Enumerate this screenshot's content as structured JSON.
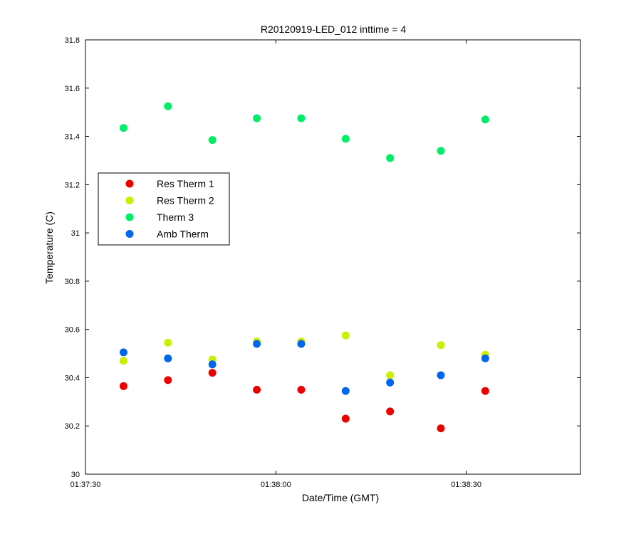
{
  "chart_data": {
    "type": "scatter",
    "title": "R20120919-LED_012 inttime = 4",
    "xlabel": "Date/Time (GMT)",
    "ylabel": "Temperature (C)",
    "x_ticks": [
      "01:37:30",
      "01:38:00",
      "01:38:30"
    ],
    "x_tick_values": [
      "01:37:30",
      "01:38:00",
      "01:38:30"
    ],
    "xlim": [
      "01:37:30",
      "01:38:48"
    ],
    "y_ticks": [
      "30",
      "30.2",
      "30.4",
      "30.6",
      "30.8",
      "31",
      "31.2",
      "31.4",
      "31.6",
      "31.8"
    ],
    "ylim": [
      30,
      31.8
    ],
    "grid": false,
    "legend_position": "left",
    "x": [
      "01:37:36",
      "01:37:43",
      "01:37:50",
      "01:37:57",
      "01:38:04",
      "01:38:11",
      "01:38:18",
      "01:38:26",
      "01:38:33"
    ],
    "series": [
      {
        "name": "Res Therm 1",
        "color": "#ee0000",
        "values": [
          30.365,
          30.39,
          30.42,
          30.35,
          30.35,
          30.23,
          30.26,
          30.19,
          30.345
        ]
      },
      {
        "name": "Res Therm 2",
        "color": "#ccee00",
        "values": [
          30.47,
          30.545,
          30.475,
          30.55,
          30.55,
          30.575,
          30.41,
          30.535,
          30.495
        ]
      },
      {
        "name": "Therm 3",
        "color": "#00ee66",
        "values": [
          31.435,
          31.525,
          31.385,
          31.475,
          31.475,
          31.39,
          31.31,
          31.34,
          31.47
        ]
      },
      {
        "name": "Amb Therm",
        "color": "#0066ee",
        "values": [
          30.505,
          30.48,
          30.455,
          30.54,
          30.54,
          30.345,
          30.38,
          30.41,
          30.48
        ]
      }
    ]
  }
}
